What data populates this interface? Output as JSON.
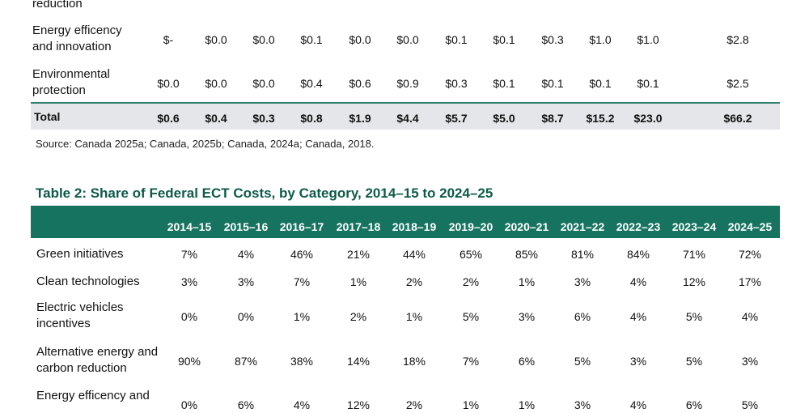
{
  "table1": {
    "partial_label": "reduction",
    "rows": [
      {
        "label_lines": [
          "Energy efficency",
          "and innovation"
        ],
        "values": [
          "$-",
          "$0.0",
          "$0.0",
          "$0.1",
          "$0.0",
          "$0.0",
          "$0.1",
          "$0.1",
          "$0.3",
          "$1.0",
          "$1.0"
        ],
        "total": "$2.8"
      },
      {
        "label_lines": [
          "Environmental",
          "protection"
        ],
        "values": [
          "$0.0",
          "$0.0",
          "$0.0",
          "$0.4",
          "$0.6",
          "$0.9",
          "$0.3",
          "$0.1",
          "$0.1",
          "$0.1",
          "$0.1"
        ],
        "total": "$2.5"
      }
    ],
    "total_row": {
      "label": "Total",
      "values": [
        "$0.6",
        "$0.4",
        "$0.3",
        "$0.8",
        "$1.9",
        "$4.4",
        "$5.7",
        "$5.0",
        "$8.7",
        "$15.2",
        "$23.0"
      ],
      "total": "$66.2"
    },
    "source": "Source: Canada 2025a; Canada, 2025b; Canada, 2024a; Canada, 2018."
  },
  "table2": {
    "title": "Table 2:  Share of Federal ECT Costs, by Category, 2014–15 to 2024–25",
    "headers": [
      "2014–15",
      "2015–16",
      "2016–17",
      "2017–18",
      "2018–19",
      "2019–20",
      "2020–21",
      "2021–22",
      "2022–23",
      "2023–24",
      "2024–25"
    ],
    "rows": [
      {
        "label_lines": [
          "Green initiatives"
        ],
        "values": [
          "7%",
          "4%",
          "46%",
          "21%",
          "44%",
          "65%",
          "85%",
          "81%",
          "84%",
          "71%",
          "72%"
        ]
      },
      {
        "label_lines": [
          "Clean technologies"
        ],
        "values": [
          "3%",
          "3%",
          "7%",
          "1%",
          "2%",
          "2%",
          "1%",
          "3%",
          "4%",
          "12%",
          "17%"
        ]
      },
      {
        "label_lines": [
          "Electric vehicles",
          "incentives"
        ],
        "values": [
          "0%",
          "0%",
          "1%",
          "2%",
          "1%",
          "5%",
          "3%",
          "6%",
          "4%",
          "5%",
          "4%"
        ]
      },
      {
        "label_lines": [
          "Alternative energy and",
          "carbon reduction"
        ],
        "values": [
          "90%",
          "87%",
          "38%",
          "14%",
          "18%",
          "7%",
          "6%",
          "5%",
          "3%",
          "5%",
          "3%"
        ]
      },
      {
        "label_lines": [
          "Energy efficency and",
          ""
        ],
        "values": [
          "0%",
          "6%",
          "4%",
          "12%",
          "2%",
          "1%",
          "1%",
          "3%",
          "4%",
          "6%",
          "5%"
        ]
      }
    ]
  }
}
